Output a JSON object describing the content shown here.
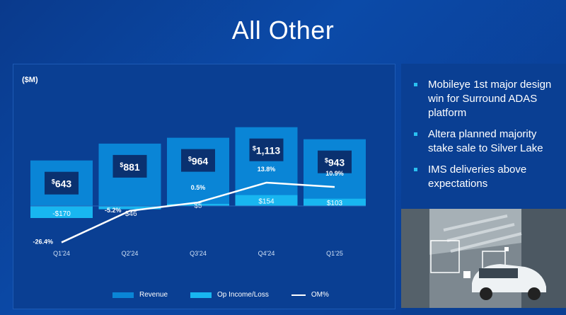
{
  "title": "All Other",
  "unit_label": "($M)",
  "colors": {
    "revenue": "#0a85d6",
    "op_income": "#18b6f0",
    "om_line": "#ffffff",
    "value_box": "#0a3170"
  },
  "chart_data": {
    "type": "bar",
    "categories": [
      "Q1'24",
      "Q2'24",
      "Q3'24",
      "Q4'24",
      "Q1'25"
    ],
    "series": [
      {
        "name": "Revenue",
        "type": "bar",
        "values": [
          643,
          881,
          964,
          1113,
          943
        ],
        "labels": [
          "643",
          "881",
          "964",
          "1,113",
          "943"
        ]
      },
      {
        "name": "Op Income/Loss",
        "type": "bar",
        "values": [
          -170,
          -46,
          5,
          154,
          103
        ],
        "labels": [
          "-$170",
          "-$46",
          "$5",
          "$154",
          "$103"
        ]
      },
      {
        "name": "OM%",
        "type": "line",
        "values": [
          -26.4,
          -5.2,
          0.5,
          13.8,
          10.9
        ],
        "labels": [
          "-26.4%",
          "-5.2%",
          "0.5%",
          "13.8%",
          "10.9%"
        ]
      }
    ]
  },
  "bullets": [
    "Mobileye 1st major design win for Surround ADAS platform",
    "Altera planned majority stake sale to Silver Lake",
    "IMS deliveries above expectations"
  ]
}
